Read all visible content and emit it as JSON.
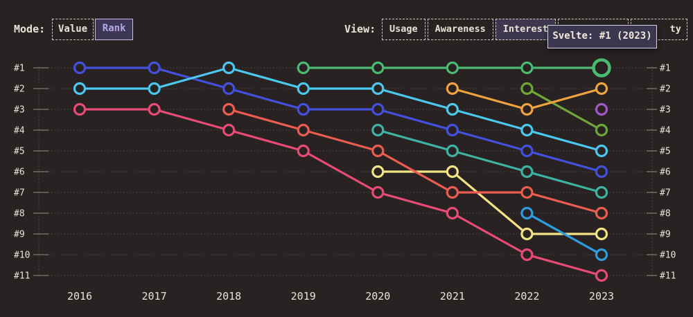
{
  "controls": {
    "mode": {
      "label": "Mode:",
      "options": [
        {
          "label": "Value",
          "selected": false
        },
        {
          "label": "Rank",
          "selected": true
        }
      ]
    },
    "view": {
      "label": "View:",
      "tabs": [
        {
          "label": "Usage",
          "selected": false
        },
        {
          "label": "Awareness",
          "selected": false
        },
        {
          "label": "Interest",
          "selected": true
        },
        {
          "label": "",
          "selected": false,
          "note": "tab fully covered by tooltip"
        },
        {
          "label": "ty",
          "selected": false,
          "note": "right edge of a tab label, rest covered by tooltip"
        }
      ]
    }
  },
  "tooltip": {
    "text": "Svelte: #1 (2023)"
  },
  "colors": {
    "background": "#282322",
    "text": "#EBE3D6",
    "grid": "#7A736A",
    "tick": "#A59D90",
    "accent_lavender": "#B5A6E8"
  },
  "chart_data": {
    "type": "line",
    "subtype": "bump-chart-ranking",
    "x": [
      2016,
      2017,
      2018,
      2019,
      2020,
      2021,
      2022,
      2023
    ],
    "ranks": [
      1,
      2,
      3,
      4,
      5,
      6,
      7,
      8,
      9,
      10,
      11
    ],
    "rank_label_format": "#N",
    "grid": "dotted-horizontal",
    "legend": "none",
    "highlight": {
      "series": "svelte",
      "year": 2023,
      "rank": 1
    },
    "series": [
      {
        "name": "blue-series",
        "color": "#4450DE",
        "points": [
          [
            2016,
            1
          ],
          [
            2017,
            1
          ],
          [
            2018,
            2
          ],
          [
            2019,
            3
          ],
          [
            2020,
            3
          ],
          [
            2021,
            4
          ],
          [
            2022,
            5
          ],
          [
            2023,
            6
          ]
        ]
      },
      {
        "name": "cyan-series",
        "color": "#4CC8EF",
        "points": [
          [
            2016,
            2
          ],
          [
            2017,
            2
          ],
          [
            2018,
            1
          ],
          [
            2019,
            2
          ],
          [
            2020,
            2
          ],
          [
            2021,
            3
          ],
          [
            2022,
            4
          ],
          [
            2023,
            5
          ]
        ]
      },
      {
        "name": "rose-series",
        "color": "#E84A7A",
        "points": [
          [
            2016,
            3
          ],
          [
            2017,
            3
          ],
          [
            2018,
            4
          ],
          [
            2019,
            5
          ],
          [
            2020,
            7
          ],
          [
            2021,
            8
          ],
          [
            2022,
            10
          ],
          [
            2023,
            11
          ]
        ]
      },
      {
        "name": "yellow-series",
        "color": "#F2E385",
        "points": [
          [
            2020,
            6
          ],
          [
            2021,
            6
          ],
          [
            2022,
            9
          ],
          [
            2023,
            9
          ]
        ]
      },
      {
        "name": "salmon-series",
        "color": "#EB5C51",
        "points": [
          [
            2018,
            3
          ],
          [
            2019,
            4
          ],
          [
            2020,
            5
          ],
          [
            2021,
            7
          ],
          [
            2022,
            7
          ],
          [
            2023,
            8
          ]
        ]
      },
      {
        "name": "teal-series",
        "color": "#3EB3A3",
        "points": [
          [
            2020,
            4
          ],
          [
            2021,
            5
          ],
          [
            2022,
            6
          ],
          [
            2023,
            7
          ]
        ]
      },
      {
        "name": "olive-series",
        "color": "#6FA63A",
        "points": [
          [
            2022,
            2
          ],
          [
            2023,
            4
          ]
        ]
      },
      {
        "name": "orange-series",
        "color": "#EFA23D",
        "points": [
          [
            2021,
            2
          ],
          [
            2022,
            3
          ],
          [
            2023,
            2
          ]
        ]
      },
      {
        "name": "sky-series",
        "color": "#2F9CE2",
        "points": [
          [
            2022,
            8
          ],
          [
            2023,
            10
          ]
        ]
      },
      {
        "name": "svelte",
        "color": "#4ABB71",
        "points": [
          [
            2019,
            1
          ],
          [
            2020,
            1
          ],
          [
            2021,
            1
          ],
          [
            2022,
            1
          ],
          [
            2023,
            1
          ]
        ]
      },
      {
        "name": "purple-series",
        "color": "#A258C6",
        "points": [
          [
            2023,
            3
          ]
        ]
      }
    ]
  }
}
